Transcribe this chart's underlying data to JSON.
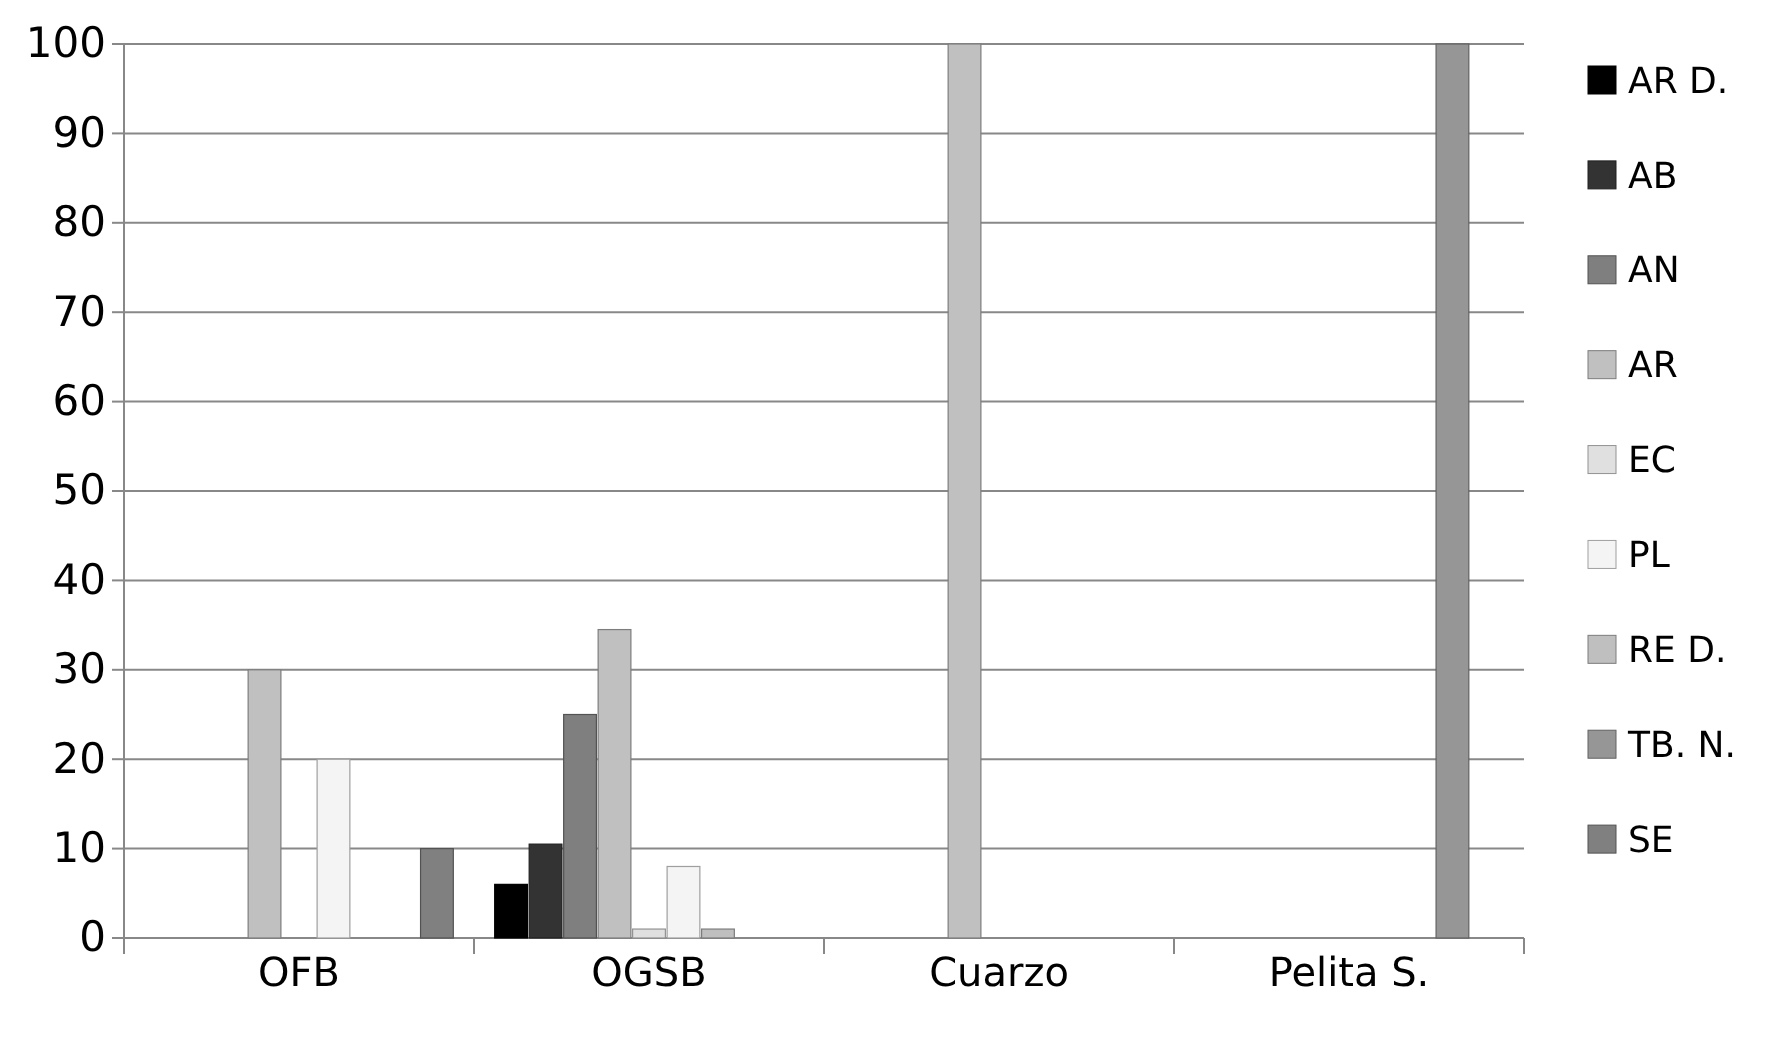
{
  "chart_data": {
    "type": "bar",
    "categories": [
      "OFB",
      "OGSB",
      "Cuarzo",
      "Pelita S."
    ],
    "series": [
      {
        "name": "AR D.",
        "color": "#000000",
        "values": [
          null,
          6,
          null,
          null
        ]
      },
      {
        "name": "AB",
        "color": "#333333",
        "values": [
          null,
          10.5,
          null,
          null
        ]
      },
      {
        "name": "AN",
        "color": "#7f7f7f",
        "values": [
          null,
          25,
          null,
          null
        ]
      },
      {
        "name": "AR",
        "color": "#c0c0c0",
        "values": [
          30,
          34.5,
          100,
          null
        ]
      },
      {
        "name": "EC",
        "color": "#e0e0e0",
        "values": [
          null,
          1,
          null,
          null
        ]
      },
      {
        "name": "PL",
        "color": "#f4f4f4",
        "values": [
          20,
          8,
          null,
          null
        ]
      },
      {
        "name": "RE D.",
        "color": "#bfbfbf",
        "values": [
          null,
          1,
          null,
          null
        ]
      },
      {
        "name": "TB. N.",
        "color": "#969696",
        "values": [
          null,
          null,
          null,
          100
        ]
      },
      {
        "name": "SE",
        "color": "#808080",
        "values": [
          10,
          null,
          null,
          null
        ]
      }
    ],
    "ylim": [
      0,
      100
    ],
    "yticks": [
      0,
      10,
      20,
      30,
      40,
      50,
      60,
      70,
      80,
      90,
      100
    ],
    "grid": "y",
    "legend": "right"
  }
}
